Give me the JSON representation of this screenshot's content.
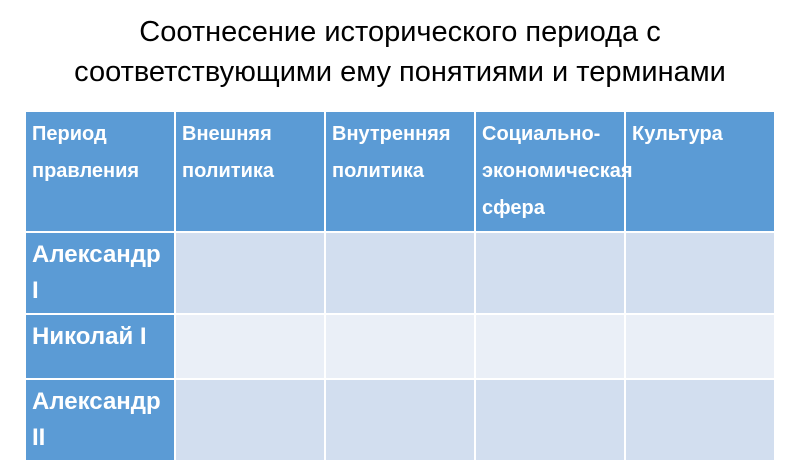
{
  "title": [
    "Соотнесение исторического периода с",
    "соответствующими ему понятиями и терминами"
  ],
  "table": {
    "headers": [
      "Период правления",
      "Внешняя политика",
      "Внутренняя политика",
      "Социально-экономическая сфера",
      "Культура"
    ],
    "rows": [
      "Александр I",
      "Николай I",
      "Александр II"
    ]
  },
  "colors": {
    "header": "#5b9bd5",
    "row_odd": "#d2deef",
    "row_even": "#eaeff7"
  }
}
